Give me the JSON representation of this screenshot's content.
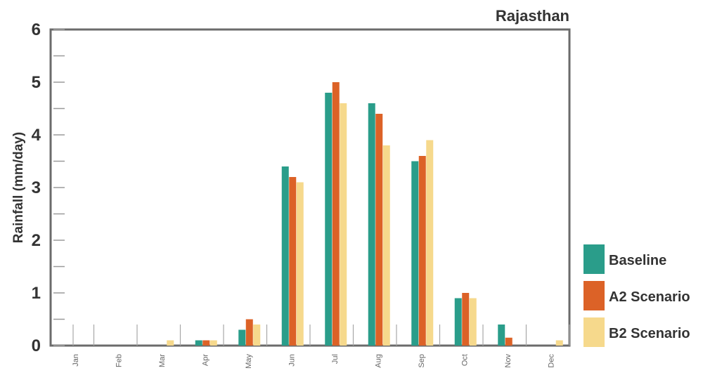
{
  "chart_data": {
    "type": "bar",
    "title": "Rajasthan",
    "ylabel": "Rainfall (mm/day)",
    "xlabel": "",
    "ylim": [
      0,
      6.2
    ],
    "yticks": [
      "0",
      "1",
      "2",
      "3",
      "4",
      "5",
      "6"
    ],
    "categories": [
      "Jan",
      "Feb",
      "Mar",
      "Apr",
      "May",
      "Jun",
      "Jul",
      "Aug",
      "Sep",
      "Oct",
      "Nov",
      "Dec"
    ],
    "series": [
      {
        "name": "Baseline",
        "color": "#2a9d8a",
        "values": [
          0.0,
          0.0,
          0.0,
          0.1,
          0.3,
          3.4,
          4.8,
          4.6,
          3.5,
          0.9,
          0.4,
          0.0
        ]
      },
      {
        "name": "A2 Scenario",
        "color": "#dc6227",
        "values": [
          0.0,
          0.0,
          0.0,
          0.1,
          0.5,
          3.2,
          5.0,
          4.4,
          3.6,
          1.0,
          0.15,
          0.0
        ]
      },
      {
        "name": "B2 Scenario",
        "color": "#f6d98c",
        "values": [
          0.0,
          0.0,
          0.1,
          0.1,
          0.4,
          3.1,
          4.6,
          3.8,
          3.9,
          0.9,
          0.0,
          0.1
        ]
      }
    ],
    "grid": false,
    "legend_position": "right"
  }
}
